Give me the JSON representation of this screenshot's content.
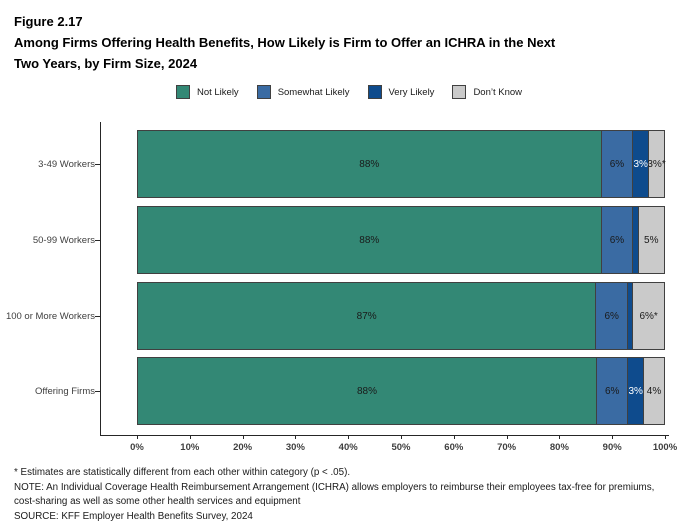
{
  "header": {
    "figure_label": "Figure 2.17",
    "title_line1": "Among Firms Offering Health Benefits, How Likely is Firm to Offer an ICHRA in the Next",
    "title_line2": "Two Years, by Firm Size, 2024"
  },
  "legend": {
    "items": [
      {
        "label": "Not Likely",
        "color": "#338875"
      },
      {
        "label": "Somewhat Likely",
        "color": "#3a6ba3"
      },
      {
        "label": "Very Likely",
        "color": "#0e4b8d"
      },
      {
        "label": "Don’t Know",
        "color": "#cacaca"
      }
    ]
  },
  "chart_data": {
    "type": "bar",
    "orientation": "horizontal_stacked",
    "title": "Among Firms Offering Health Benefits, How Likely is Firm to Offer an ICHRA in the Next Two Years, by Firm Size, 2024",
    "categories": [
      "3-49 Workers",
      "50-99 Workers",
      "100 or More Workers",
      "Offering Firms"
    ],
    "series": [
      {
        "name": "Not Likely",
        "color": "#338875",
        "label_color": "#1a1a1a",
        "values": [
          88,
          88,
          87,
          88
        ],
        "labels": [
          "88%",
          "88%",
          "87%",
          "88%"
        ]
      },
      {
        "name": "Somewhat Likely",
        "color": "#3a6ba3",
        "label_color": "#1a1a1a",
        "values": [
          6,
          6,
          6,
          6
        ],
        "labels": [
          "6%",
          "6%",
          "6%",
          "6%"
        ]
      },
      {
        "name": "Very Likely",
        "color": "#0e4b8d",
        "label_color": "#ffffff",
        "values": [
          3,
          1,
          1,
          3
        ],
        "labels": [
          "3%",
          "",
          "",
          "3%"
        ]
      },
      {
        "name": "Don't Know",
        "color": "#cacaca",
        "label_color": "#1a1a1a",
        "values": [
          3,
          5,
          6,
          4
        ],
        "labels": [
          "3%*",
          "5%",
          "6%*",
          "4%"
        ]
      }
    ],
    "x_ticks": [
      "0%",
      "10%",
      "20%",
      "30%",
      "40%",
      "50%",
      "60%",
      "70%",
      "80%",
      "90%",
      "100%"
    ],
    "xlim": [
      0,
      100
    ],
    "grid": false,
    "legend_position": "top"
  },
  "footnotes": {
    "line1": "* Estimates are statistically different from each other within category (p < .05).",
    "line2": "NOTE: An Individual Coverage Health Reimbursement Arrangement (ICHRA) allows employers to reimburse their employees tax-free for premiums,",
    "line3": "cost-sharing as well as some other health services and equipment",
    "line4": "SOURCE: KFF Employer Health Benefits Survey, 2024"
  }
}
